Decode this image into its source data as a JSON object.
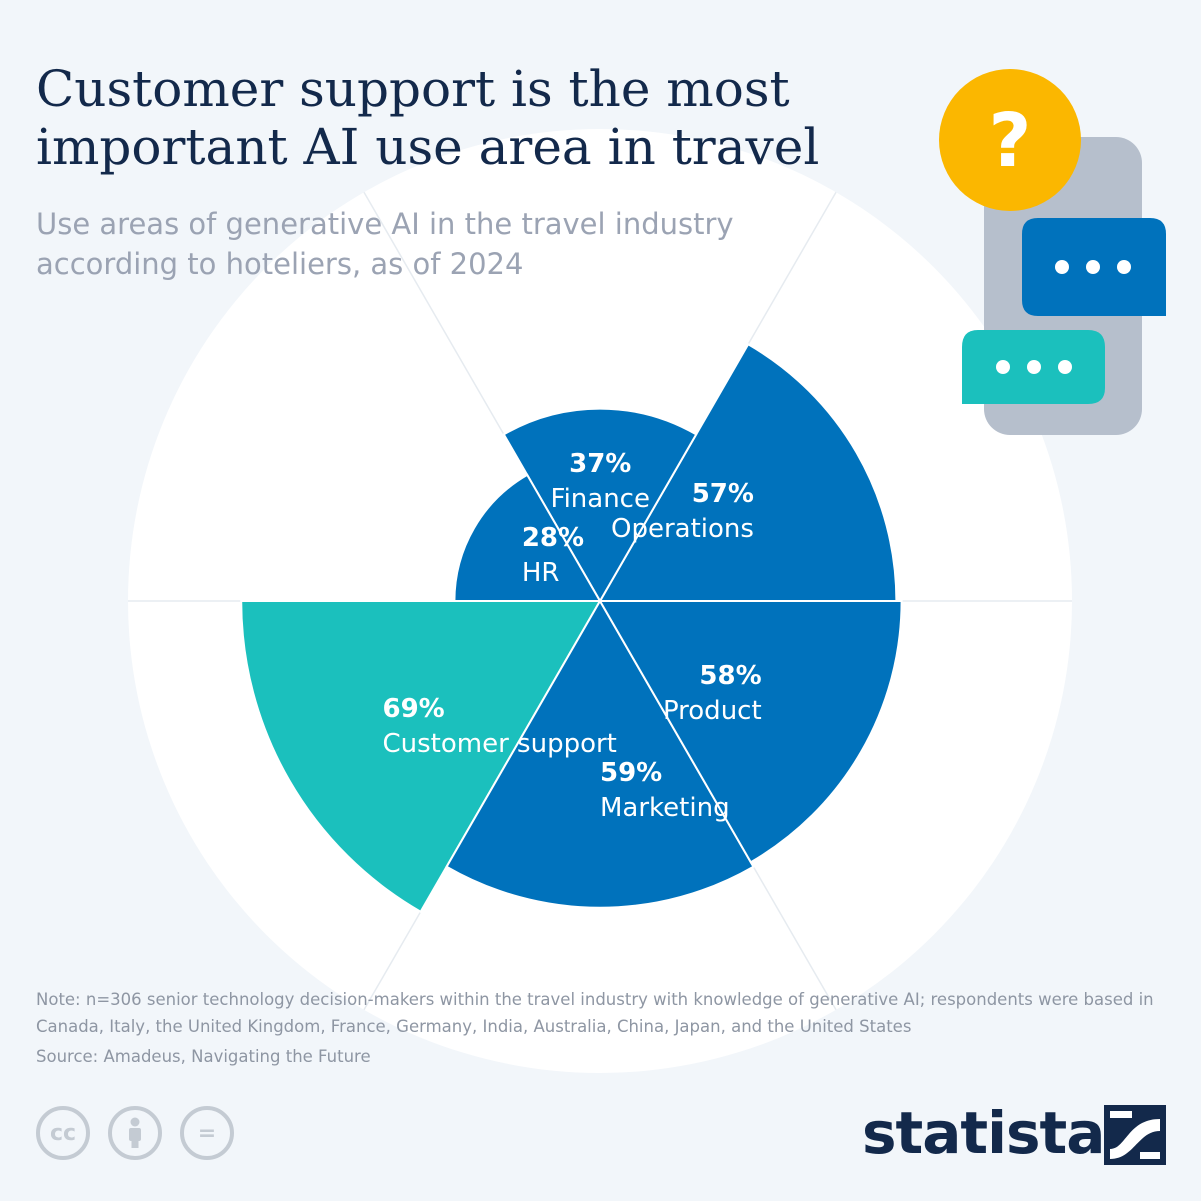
{
  "header": {
    "title": "Customer support is the most important AI use area in travel",
    "subtitle": "Use areas of generative AI in the travel industry according to hoteliers, as of 2024"
  },
  "chart_data": {
    "type": "pie",
    "variant": "polar-area",
    "unit": "%",
    "max": 100,
    "categories": [
      "Operations",
      "Finance",
      "HR",
      "Customer support",
      "Marketing",
      "Product"
    ],
    "values": [
      57,
      37,
      28,
      69,
      59,
      58
    ],
    "value_labels": [
      "57%",
      "37%",
      "28%",
      "69%",
      "59%",
      "58%"
    ],
    "highlight": "Customer support",
    "colors": {
      "default": "#0072bc",
      "highlight": "#1bc0bd",
      "background_disc": "#ffffff"
    }
  },
  "footer": {
    "note": "Note: n=306 senior technology decision-makers within the travel industry with knowledge of generative AI; respondents were based in Canada, Italy, the United Kingdom, France, Germany, India, Australia, China, Japan, and the United States",
    "source": "Source: Amadeus, Navigating the Future",
    "cc_icons": [
      {
        "name": "cc-icon",
        "symbol": "cc"
      },
      {
        "name": "attribution-icon",
        "symbol": "person"
      },
      {
        "name": "no-derivatives-icon",
        "symbol": "="
      }
    ],
    "brand": "statista"
  },
  "illustration": {
    "question_mark": "?",
    "colors": {
      "question_bubble": "#fbb700",
      "phone": "#b6bfcc",
      "blue_bubble": "#0072bc",
      "teal_bubble": "#1bc0bd"
    }
  },
  "theme": {
    "background": "#f2f6fa",
    "title_color": "#13294b",
    "subtitle_color": "#9ba3b3"
  }
}
